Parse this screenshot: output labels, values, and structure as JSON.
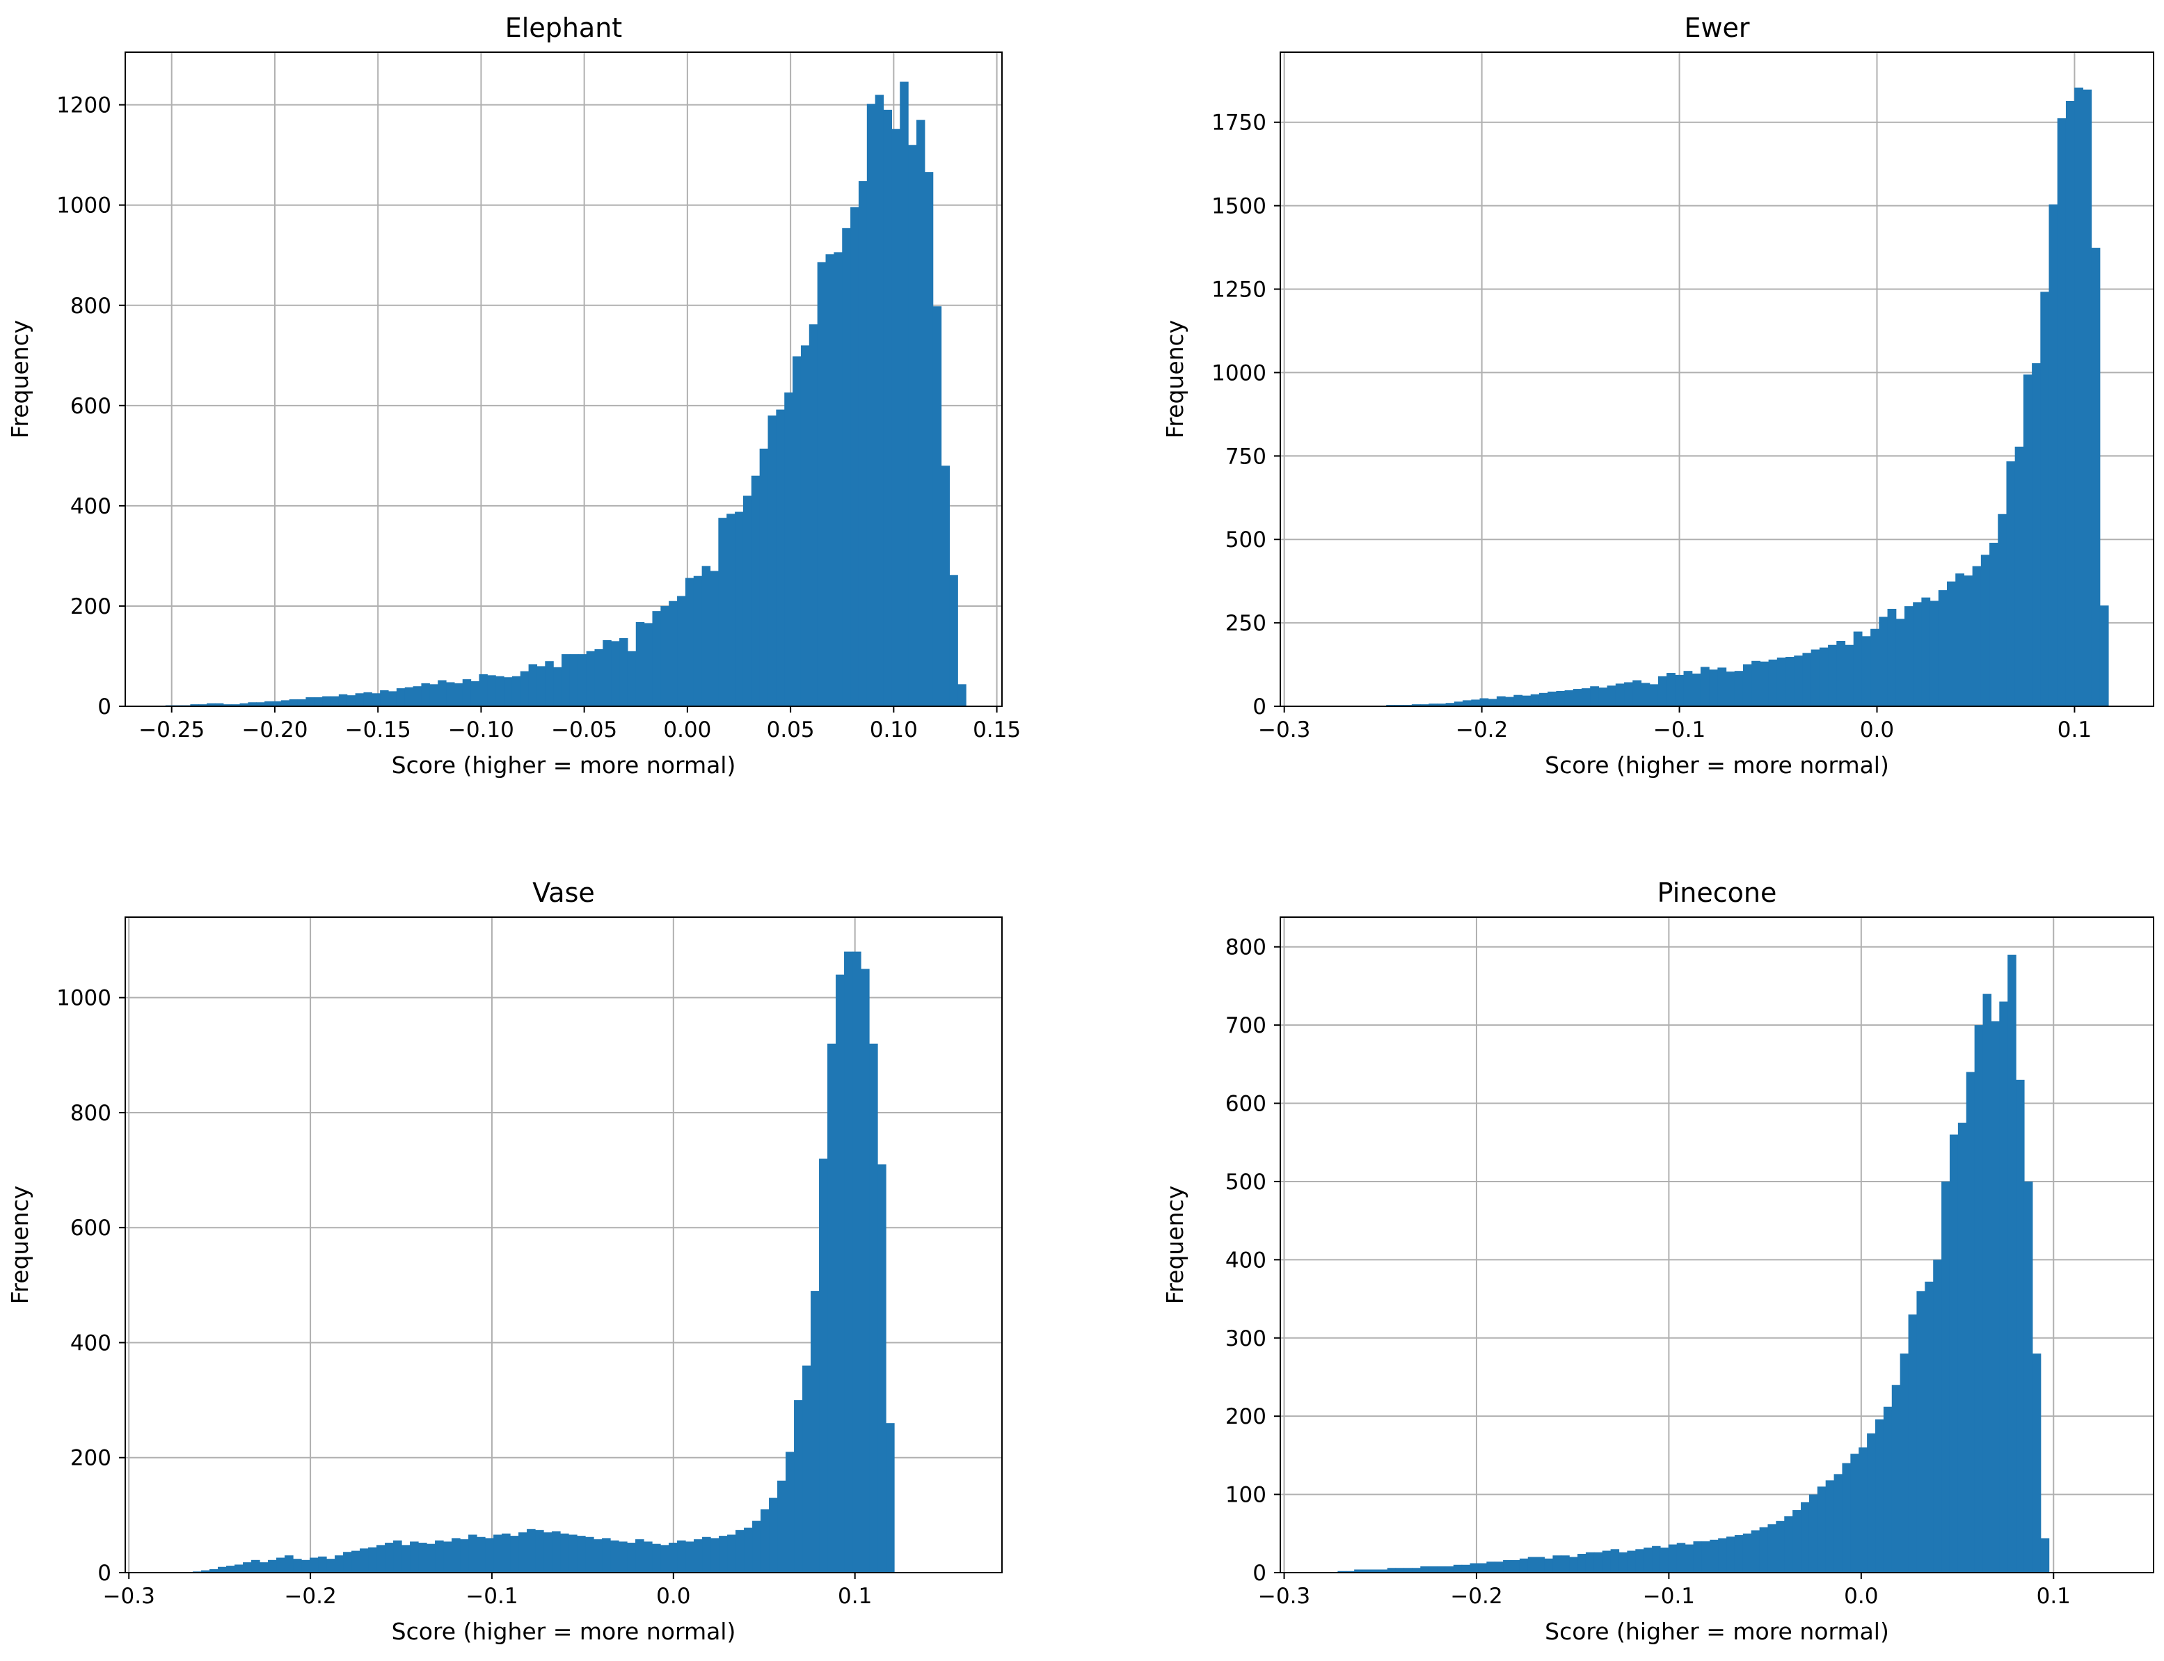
{
  "chart_data": [
    {
      "type": "bar",
      "title": "Elephant",
      "xlabel": "Score (higher = more normal)",
      "ylabel": "Frequency",
      "xlim": [
        -0.2725,
        0.1525
      ],
      "ylim": [
        0,
        1305
      ],
      "xticks": [
        -0.25,
        -0.2,
        -0.15,
        -0.1,
        -0.05,
        0.0,
        0.05,
        0.1,
        0.15
      ],
      "xtick_labels": [
        "−0.25",
        "−0.20",
        "−0.15",
        "−0.10",
        "−0.05",
        "0.00",
        "0.05",
        "0.10",
        "0.15"
      ],
      "yticks": [
        0,
        200,
        400,
        600,
        800,
        1000,
        1200
      ],
      "ytick_labels": [
        "0",
        "200",
        "400",
        "600",
        "800",
        "1000",
        "1200"
      ],
      "grid": true,
      "bar_color": "#1f77b4",
      "bin_start": -0.265,
      "bin_width": 0.004,
      "values": [
        0,
        0,
        0,
        2,
        2,
        2,
        4,
        4,
        6,
        6,
        4,
        4,
        6,
        8,
        8,
        10,
        10,
        12,
        14,
        14,
        18,
        18,
        20,
        20,
        24,
        22,
        26,
        28,
        26,
        32,
        30,
        36,
        38,
        40,
        46,
        44,
        52,
        48,
        46,
        54,
        50,
        64,
        62,
        60,
        58,
        60,
        70,
        84,
        80,
        90,
        78,
        104,
        104,
        104,
        110,
        114,
        132,
        130,
        136,
        110,
        168,
        166,
        190,
        200,
        210,
        220,
        256,
        260,
        280,
        270,
        376,
        384,
        388,
        420,
        460,
        514,
        580,
        592,
        626,
        698,
        720,
        762,
        886,
        902,
        906,
        954,
        996,
        1048,
        1202,
        1220,
        1190,
        1152,
        1246,
        1120,
        1170,
        1066,
        798,
        480,
        262,
        44
      ]
    },
    {
      "type": "bar",
      "title": "Ewer",
      "xlabel": "Score (higher = more normal)",
      "ylabel": "Frequency",
      "xlim": [
        -0.302,
        0.14
      ],
      "ylim": [
        0,
        1960
      ],
      "xticks": [
        -0.3,
        -0.2,
        -0.1,
        0.0,
        0.1
      ],
      "xtick_labels": [
        "−0.3",
        "−0.2",
        "−0.1",
        "0.0",
        "0.1"
      ],
      "yticks": [
        0,
        250,
        500,
        750,
        1000,
        1250,
        1500,
        1750
      ],
      "ytick_labels": [
        "0",
        "250",
        "500",
        "750",
        "1000",
        "1250",
        "1500",
        "1750"
      ],
      "grid": true,
      "bar_color": "#1f77b4",
      "bin_start": -0.3,
      "bin_width": 0.0043,
      "values": [
        0,
        0,
        0,
        0,
        0,
        0,
        0,
        0,
        0,
        2,
        2,
        2,
        4,
        4,
        4,
        6,
        6,
        8,
        8,
        10,
        14,
        18,
        20,
        24,
        22,
        30,
        28,
        34,
        32,
        36,
        40,
        44,
        46,
        48,
        52,
        54,
        60,
        56,
        62,
        68,
        72,
        78,
        70,
        66,
        90,
        100,
        94,
        106,
        98,
        118,
        110,
        116,
        104,
        106,
        126,
        136,
        134,
        140,
        146,
        148,
        152,
        160,
        170,
        176,
        184,
        196,
        184,
        224,
        210,
        232,
        268,
        292,
        262,
        300,
        312,
        326,
        316,
        348,
        374,
        398,
        392,
        420,
        454,
        490,
        576,
        734,
        778,
        994,
        1028,
        1242,
        1504,
        1762,
        1814,
        1854,
        1848,
        1374,
        302
      ]
    },
    {
      "type": "bar",
      "title": "Vase",
      "xlabel": "Score (higher = more normal)",
      "ylabel": "Frequency",
      "xlim": [
        -0.302,
        0.181
      ],
      "ylim": [
        0,
        1140
      ],
      "xticks": [
        -0.3,
        -0.2,
        -0.1,
        0.0,
        0.1
      ],
      "xtick_labels": [
        "−0.3",
        "−0.2",
        "−0.1",
        "0.0",
        "0.1"
      ],
      "yticks": [
        0,
        200,
        400,
        600,
        800,
        1000
      ],
      "ytick_labels": [
        "0",
        "200",
        "400",
        "600",
        "800",
        "1000"
      ],
      "grid": true,
      "bar_color": "#1f77b4",
      "bin_start": -0.297,
      "bin_width": 0.0046,
      "values": [
        0,
        0,
        0,
        0,
        0,
        0,
        0,
        2,
        4,
        6,
        10,
        12,
        14,
        18,
        22,
        18,
        22,
        26,
        30,
        24,
        22,
        26,
        28,
        24,
        30,
        36,
        38,
        42,
        44,
        48,
        52,
        56,
        48,
        54,
        52,
        50,
        56,
        54,
        60,
        58,
        66,
        62,
        60,
        66,
        68,
        64,
        70,
        76,
        74,
        70,
        72,
        68,
        66,
        64,
        62,
        58,
        60,
        56,
        54,
        52,
        58,
        54,
        50,
        48,
        52,
        56,
        54,
        58,
        62,
        60,
        64,
        66,
        74,
        78,
        90,
        110,
        130,
        160,
        210,
        300,
        360,
        490,
        720,
        920,
        1040,
        1080,
        1080,
        1050,
        920,
        710,
        260
      ]
    },
    {
      "type": "bar",
      "title": "Pinecone",
      "xlabel": "Score (higher = more normal)",
      "ylabel": "Frequency",
      "xlim": [
        -0.302,
        0.152
      ],
      "ylim": [
        0,
        838
      ],
      "xticks": [
        -0.3,
        -0.2,
        -0.1,
        0.0,
        0.1
      ],
      "xtick_labels": [
        "−0.3",
        "−0.2",
        "−0.1",
        "0.0",
        "0.1"
      ],
      "yticks": [
        0,
        100,
        200,
        300,
        400,
        500,
        600,
        700,
        800
      ],
      "ytick_labels": [
        "0",
        "100",
        "200",
        "300",
        "400",
        "500",
        "600",
        "700",
        "800"
      ],
      "grid": true,
      "bar_color": "#1f77b4",
      "bin_start": -0.298,
      "bin_width": 0.0043,
      "values": [
        0,
        0,
        0,
        0,
        0,
        0,
        2,
        2,
        4,
        4,
        4,
        4,
        6,
        6,
        6,
        6,
        8,
        8,
        8,
        8,
        10,
        10,
        12,
        12,
        14,
        14,
        16,
        16,
        18,
        20,
        20,
        18,
        22,
        22,
        20,
        24,
        26,
        26,
        28,
        30,
        26,
        28,
        30,
        32,
        34,
        32,
        36,
        38,
        36,
        40,
        40,
        42,
        44,
        46,
        48,
        50,
        54,
        58,
        62,
        66,
        72,
        80,
        90,
        100,
        110,
        118,
        126,
        140,
        152,
        160,
        178,
        196,
        212,
        240,
        280,
        330,
        360,
        372,
        400,
        500,
        560,
        575,
        640,
        700,
        740,
        705,
        730,
        790,
        630,
        500,
        280,
        44
      ]
    }
  ]
}
